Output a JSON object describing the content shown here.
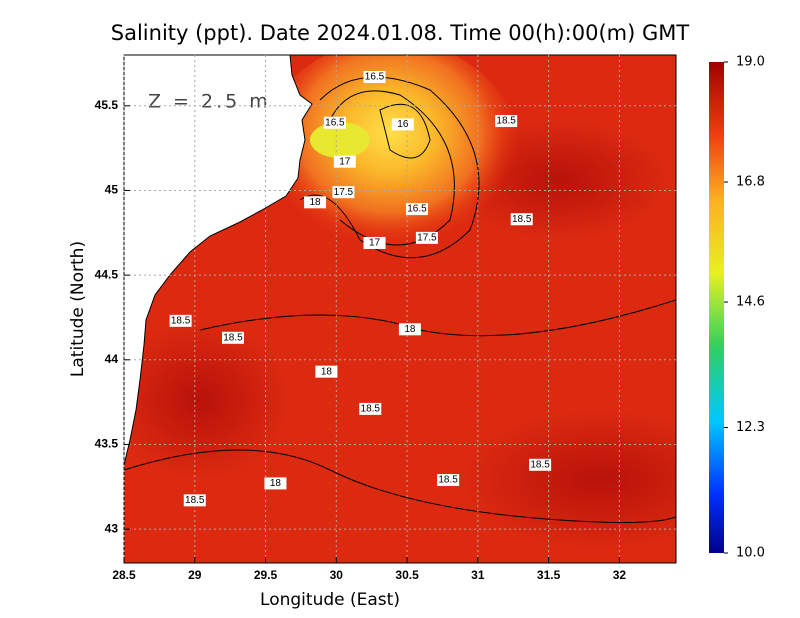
{
  "chart_data": {
    "type": "heatmap",
    "title": "Salinity (ppt). Date 2024.01.08. Time 00(h):00(m) GMT",
    "x_label": "Longitude (East)",
    "y_label": "Latitude (North)",
    "annotation": "Z = 2.5 m",
    "xlim": [
      28.5,
      32.4
    ],
    "ylim": [
      42.8,
      45.8
    ],
    "xticks": [
      28.5,
      29,
      29.5,
      30,
      30.5,
      31,
      31.5,
      32
    ],
    "yticks": [
      43,
      43.5,
      44,
      44.5,
      45,
      45.5
    ],
    "grid": true,
    "colorbar_lim": [
      10,
      19
    ],
    "colorbar_ticks": [
      {
        "value": 19,
        "label": "19.0"
      },
      {
        "value": 16.8,
        "label": "16.8"
      },
      {
        "value": 14.6,
        "label": "14.6"
      },
      {
        "value": 12.3,
        "label": "12.3"
      },
      {
        "value": 10,
        "label": "10.0"
      }
    ],
    "contour_labels": [
      {
        "x": 30.27,
        "y": 45.67,
        "value": 16.5
      },
      {
        "x": 30.47,
        "y": 45.39,
        "value": 16
      },
      {
        "x": 29.99,
        "y": 45.4,
        "value": 16.5
      },
      {
        "x": 31.2,
        "y": 45.41,
        "value": 18.5
      },
      {
        "x": 30.06,
        "y": 45.17,
        "value": 17
      },
      {
        "x": 30.05,
        "y": 44.99,
        "value": 17.5
      },
      {
        "x": 29.85,
        "y": 44.93,
        "value": 18
      },
      {
        "x": 30.57,
        "y": 44.89,
        "value": 16.5
      },
      {
        "x": 30.64,
        "y": 44.72,
        "value": 17.5
      },
      {
        "x": 30.27,
        "y": 44.69,
        "value": 17
      },
      {
        "x": 31.31,
        "y": 44.83,
        "value": 18.5
      },
      {
        "x": 30.52,
        "y": 44.18,
        "value": 18
      },
      {
        "x": 28.9,
        "y": 44.23,
        "value": 18.5
      },
      {
        "x": 29.27,
        "y": 44.13,
        "value": 18.5
      },
      {
        "x": 29.93,
        "y": 43.93,
        "value": 18
      },
      {
        "x": 30.24,
        "y": 43.71,
        "value": 18.5
      },
      {
        "x": 31.44,
        "y": 43.38,
        "value": 18.5
      },
      {
        "x": 30.79,
        "y": 43.29,
        "value": 18.5
      },
      {
        "x": 29.57,
        "y": 43.27,
        "value": 18
      },
      {
        "x": 29.0,
        "y": 43.17,
        "value": 18.5
      }
    ]
  }
}
